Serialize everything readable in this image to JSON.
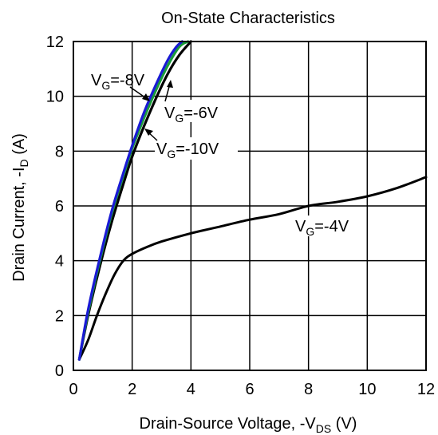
{
  "chart_data": {
    "type": "line",
    "title": "On-State Characteristics",
    "xlabel": {
      "prefix": "Drain-Source Voltage, -V",
      "sub": "DS",
      "suffix": " (V)"
    },
    "ylabel": {
      "prefix": "Drain Current, -I",
      "sub": "D",
      "suffix": " (A)"
    },
    "xlim": [
      0,
      12
    ],
    "ylim": [
      0,
      12
    ],
    "xticks": [
      "0",
      "2",
      "4",
      "6",
      "8",
      "10",
      "12"
    ],
    "yticks": [
      "0",
      "2",
      "4",
      "6",
      "8",
      "10",
      "12"
    ],
    "grid": true,
    "legend": "none",
    "series": [
      {
        "name": "VG=-4V",
        "color": "#000000",
        "x": [
          0.2,
          0.5,
          0.8,
          1.1,
          1.4,
          1.7,
          2.0,
          2.5,
          3.0,
          4.0,
          5.0,
          6.0,
          7.0,
          8.0,
          9.0,
          10.0,
          11.0,
          12.0
        ],
        "y": [
          0.4,
          1.1,
          2.0,
          2.8,
          3.5,
          4.0,
          4.25,
          4.5,
          4.7,
          5.0,
          5.25,
          5.5,
          5.7,
          6.0,
          6.15,
          6.35,
          6.65,
          7.05
        ]
      },
      {
        "name": "VG=-6V",
        "color": "#000000",
        "x": [
          0.2,
          0.5,
          0.9,
          1.3,
          1.7,
          2.0,
          2.4,
          2.8,
          3.2,
          3.6,
          4.0
        ],
        "y": [
          0.4,
          2.0,
          3.8,
          5.4,
          6.8,
          7.8,
          8.9,
          9.9,
          10.8,
          11.5,
          12.0
        ]
      },
      {
        "name": "VG=-8V",
        "color": "#1a9c3a",
        "x": [
          0.2,
          0.5,
          0.9,
          1.3,
          1.7,
          2.0,
          2.4,
          2.8,
          3.2,
          3.6,
          3.9
        ],
        "y": [
          0.4,
          2.1,
          4.0,
          5.7,
          7.1,
          8.1,
          9.2,
          10.2,
          11.1,
          11.8,
          12.0
        ]
      },
      {
        "name": "VG=-10V",
        "color": "#1a1ad4",
        "x": [
          0.2,
          0.5,
          0.9,
          1.3,
          1.7,
          2.0,
          2.4,
          2.8,
          3.2,
          3.5,
          3.7
        ],
        "y": [
          0.4,
          2.2,
          4.1,
          5.8,
          7.2,
          8.2,
          9.4,
          10.4,
          11.3,
          11.8,
          12.0
        ]
      }
    ],
    "annotations": [
      {
        "name": "label-vg-8",
        "main": "V",
        "sub": "G",
        "rest": "=-8V"
      },
      {
        "name": "label-vg-6",
        "main": "V",
        "sub": "G",
        "rest": "=-6V"
      },
      {
        "name": "label-vg-10",
        "main": "V",
        "sub": "G",
        "rest": "=-10V"
      },
      {
        "name": "label-vg-4",
        "main": "V",
        "sub": "G",
        "rest": "=-4V"
      }
    ]
  }
}
